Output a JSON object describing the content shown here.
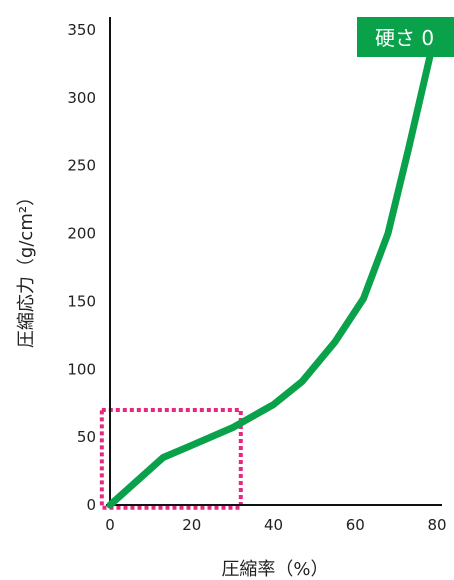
{
  "chart_data": {
    "type": "line",
    "xlabel": "圧縮率（%）",
    "ylabel": "圧縮応力（g/cm²）",
    "xlim": [
      0,
      80
    ],
    "ylim": [
      0,
      350
    ],
    "x_ticks": [
      "0",
      "20",
      "40",
      "60",
      "80"
    ],
    "y_ticks": [
      "0",
      "50",
      "100",
      "150",
      "200",
      "250",
      "300",
      "350"
    ],
    "grid": false,
    "series": [
      {
        "name": "硬さ 0",
        "color": "#0aa14b",
        "x": [
          0,
          13,
          20,
          30,
          40,
          47,
          55,
          62,
          68,
          73,
          79
        ],
        "y": [
          0,
          35,
          44,
          57,
          74,
          91,
          120,
          152,
          200,
          262,
          340
        ]
      }
    ],
    "annotation": {
      "type": "dashed-rectangle",
      "color": "#e6297e",
      "x_range": [
        -2,
        32
      ],
      "y_range": [
        -2,
        70
      ]
    }
  }
}
